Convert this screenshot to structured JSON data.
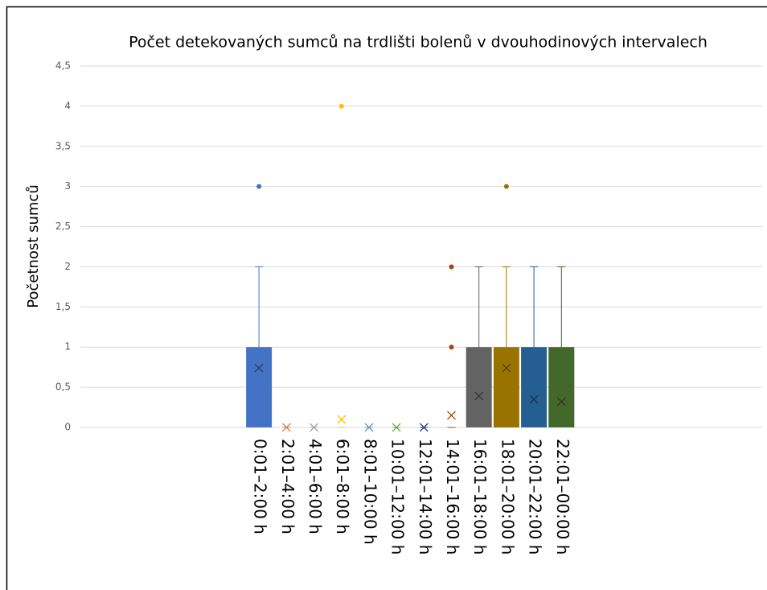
{
  "chart_data": {
    "type": "box",
    "title": "Počet detekovaných sumců na trdlišti bolenů v dvouhodinových intervalech",
    "ylabel": "Početnost sumců",
    "ylim": [
      0,
      4.5
    ],
    "yticks": [
      0,
      {
        "value": 0.5,
        "label": "0,5"
      },
      1,
      {
        "value": 1.5,
        "label": "1,5"
      },
      2,
      {
        "value": 2.5,
        "label": "2,5"
      },
      3,
      {
        "value": 3.5,
        "label": "3,5"
      },
      4,
      {
        "value": 4.5,
        "label": "4,5"
      }
    ],
    "grid": true,
    "categories": [
      "0:01–2:00 h",
      "2:01–4:00 h",
      "4:01–6:00 h",
      "6:01–8:00 h",
      "8:01–10:00 h",
      "10:01–12:00 h",
      "12:01–14:00 h",
      "14:01–16:00 h",
      "16:01–18:00 h",
      "18:01–20:00 h",
      "20:01–22:00 h",
      "22:01–00:00 h"
    ],
    "boxes": [
      {
        "color": "#4472c4",
        "q1": 0,
        "q3": 1,
        "max": 2,
        "mean": 0.74,
        "outliers": [
          3
        ]
      },
      {
        "color": "#ed7d31",
        "q1": 0,
        "q3": 0,
        "max": 0,
        "mean": 0,
        "outliers": []
      },
      {
        "color": "#a5a5a5",
        "q1": 0,
        "q3": 0,
        "max": 0,
        "mean": 0,
        "outliers": []
      },
      {
        "color": "#ffc000",
        "q1": 0,
        "q3": 0,
        "max": 0,
        "mean": 0.1,
        "outliers": [
          4
        ]
      },
      {
        "color": "#5b9bd5",
        "q1": 0,
        "q3": 0,
        "max": 0,
        "mean": 0,
        "outliers": []
      },
      {
        "color": "#70ad47",
        "q1": 0,
        "q3": 0,
        "max": 0,
        "mean": 0,
        "outliers": []
      },
      {
        "color": "#264478",
        "q1": 0,
        "q3": 0,
        "max": 0,
        "mean": 0,
        "outliers": []
      },
      {
        "color": "#9e480e",
        "q1": 0,
        "q3": 0,
        "max": 0,
        "mean": 0.15,
        "outliers": [
          1,
          2
        ]
      },
      {
        "color": "#636363",
        "q1": 0,
        "q3": 1,
        "max": 2,
        "mean": 0.39,
        "outliers": []
      },
      {
        "color": "#997300",
        "q1": 0,
        "q3": 1,
        "max": 2,
        "mean": 0.74,
        "outliers": [
          3
        ]
      },
      {
        "color": "#255e91",
        "q1": 0,
        "q3": 1,
        "max": 2,
        "mean": 0.35,
        "outliers": []
      },
      {
        "color": "#43682b",
        "q1": 0,
        "q3": 1,
        "max": 2,
        "mean": 0.32,
        "outliers": []
      }
    ]
  }
}
